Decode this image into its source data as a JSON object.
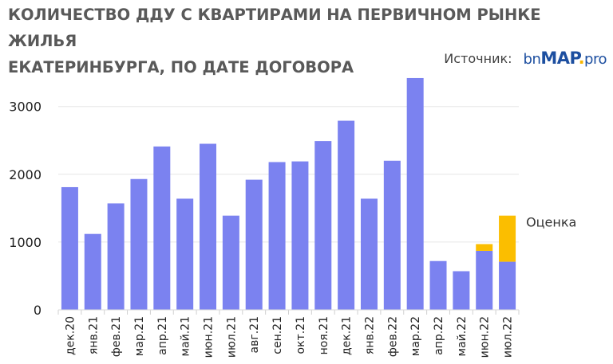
{
  "title_line1": "КОЛИЧЕСТВО ДДУ С КВАРТИРАМИ НА ПЕРВИЧНОМ РЫНКЕ ЖИЛЬЯ",
  "title_line2": "ЕКАТЕРИНБУРГА, ПО ДАТЕ ДОГОВОРА",
  "source_label": "Источник:",
  "logo": {
    "part1": "bn",
    "part2": "MAP",
    "dot": ".",
    "part3": "pro"
  },
  "colors": {
    "bar": "#7b82f0",
    "estimate": "#fbbe00",
    "grid": "#e6e6e6"
  },
  "chart_data": {
    "type": "bar",
    "categories": [
      "дек.20",
      "янв.21",
      "фев.21",
      "мар.21",
      "апр.21",
      "май.21",
      "июн.21",
      "июл.21",
      "авг.21",
      "сен.21",
      "окт.21",
      "ноя.21",
      "дек.21",
      "янв.22",
      "фев.22",
      "мар.22",
      "апр.22",
      "май.22",
      "июн.22",
      "июл.22"
    ],
    "series": [
      {
        "values": [
          1810,
          1120,
          1570,
          1930,
          2410,
          1640,
          2450,
          1390,
          1920,
          2180,
          2190,
          2490,
          2790,
          1640,
          2200,
          3420,
          720,
          570,
          870,
          710
        ]
      },
      {
        "values": [
          0,
          0,
          0,
          0,
          0,
          0,
          0,
          0,
          0,
          0,
          0,
          0,
          0,
          0,
          0,
          0,
          0,
          0,
          100,
          680
        ]
      }
    ],
    "stacked": true,
    "annotation": "Оценка",
    "yticks": [
      0,
      1000,
      2000,
      3000
    ],
    "ylim": [
      0,
      3450
    ],
    "grid": true
  }
}
